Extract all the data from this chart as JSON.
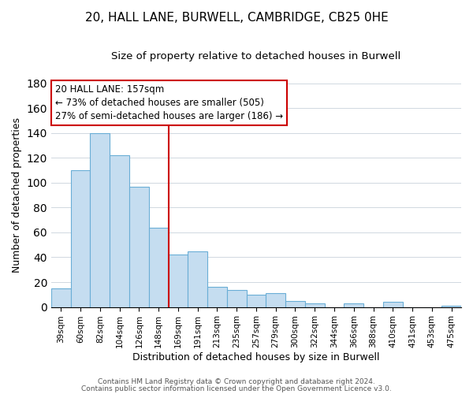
{
  "title1": "20, HALL LANE, BURWELL, CAMBRIDGE, CB25 0HE",
  "title2": "Size of property relative to detached houses in Burwell",
  "xlabel": "Distribution of detached houses by size in Burwell",
  "ylabel": "Number of detached properties",
  "categories": [
    "39sqm",
    "60sqm",
    "82sqm",
    "104sqm",
    "126sqm",
    "148sqm",
    "169sqm",
    "191sqm",
    "213sqm",
    "235sqm",
    "257sqm",
    "279sqm",
    "300sqm",
    "322sqm",
    "344sqm",
    "366sqm",
    "388sqm",
    "410sqm",
    "431sqm",
    "453sqm",
    "475sqm"
  ],
  "values": [
    15,
    110,
    140,
    122,
    97,
    64,
    42,
    45,
    16,
    14,
    10,
    11,
    5,
    3,
    0,
    3,
    0,
    4,
    0,
    0,
    1
  ],
  "bar_color": "#c5ddf0",
  "bar_edge_color": "#6aaed6",
  "vline_x": 5.5,
  "vline_color": "#cc0000",
  "annotation_line1": "20 HALL LANE: 157sqm",
  "annotation_line2": "← 73% of detached houses are smaller (505)",
  "annotation_line3": "27% of semi-detached houses are larger (186) →",
  "annotation_box_color": "#ffffff",
  "annotation_box_edge": "#cc0000",
  "ylim": [
    0,
    180
  ],
  "yticks": [
    0,
    20,
    40,
    60,
    80,
    100,
    120,
    140,
    160,
    180
  ],
  "footer1": "Contains HM Land Registry data © Crown copyright and database right 2024.",
  "footer2": "Contains public sector information licensed under the Open Government Licence v3.0.",
  "bg_color": "#ffffff",
  "grid_color": "#d0d8e0"
}
